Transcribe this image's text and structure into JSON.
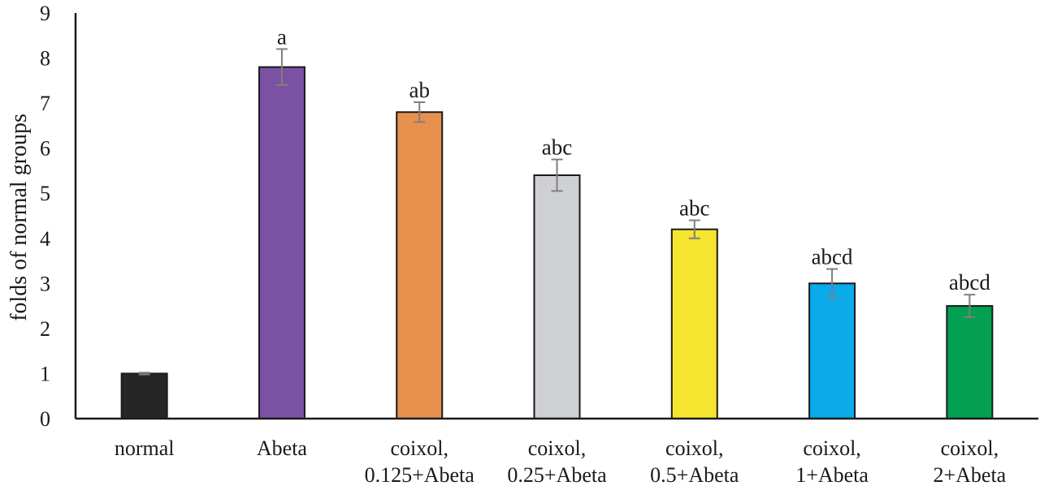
{
  "chart_data": {
    "type": "bar",
    "title": "",
    "xlabel": "",
    "ylabel": "folds of normal groups",
    "ylim": [
      0,
      9
    ],
    "yticks": [
      0,
      1,
      2,
      3,
      4,
      5,
      6,
      7,
      8,
      9
    ],
    "grid": false,
    "legend": "none",
    "categories": [
      [
        "normal"
      ],
      [
        "Abeta"
      ],
      [
        "coixol,",
        "0.125+Abeta"
      ],
      [
        "coixol,",
        "0.25+Abeta"
      ],
      [
        "coixol,",
        "0.5+Abeta"
      ],
      [
        "coixol,",
        "1+Abeta"
      ],
      [
        "coixol,",
        "2+Abeta"
      ]
    ],
    "values": [
      1.0,
      7.8,
      6.8,
      5.4,
      4.2,
      3.0,
      2.5
    ],
    "errors": [
      0.02,
      0.4,
      0.22,
      0.35,
      0.2,
      0.32,
      0.25
    ],
    "significance_labels": [
      "",
      "a",
      "ab",
      "abc",
      "abc",
      "abcd",
      "abcd"
    ],
    "bar_colors": [
      "#262626",
      "#7b52a3",
      "#e8904e",
      "#cfd0d3",
      "#f6e52e",
      "#0aaaeb",
      "#03a052"
    ]
  }
}
